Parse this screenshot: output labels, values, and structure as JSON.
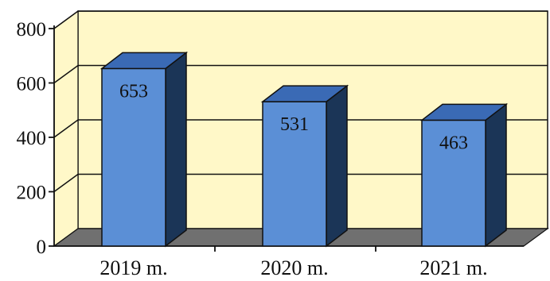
{
  "chart_data": {
    "type": "bar",
    "title": "",
    "xlabel": "",
    "ylabel": "",
    "categories": [
      "2019 m.",
      "2020 m.",
      "2021 m."
    ],
    "values": [
      653,
      531,
      463
    ],
    "data_labels": [
      "653",
      "531",
      "463"
    ],
    "ylim": [
      0,
      800
    ],
    "yticks": [
      0,
      200,
      400,
      600,
      800
    ],
    "ytick_labels": [
      "0",
      "200",
      "400",
      "600",
      "800"
    ],
    "grid": true,
    "legend": "none",
    "three_d": true,
    "colors": {
      "bar_front": "#5b8fd6",
      "bar_top": "#3a6ab5",
      "bar_side": "#1b3557",
      "wall": "#fff8c8",
      "floor": "#707070",
      "axis": "#111111"
    }
  }
}
